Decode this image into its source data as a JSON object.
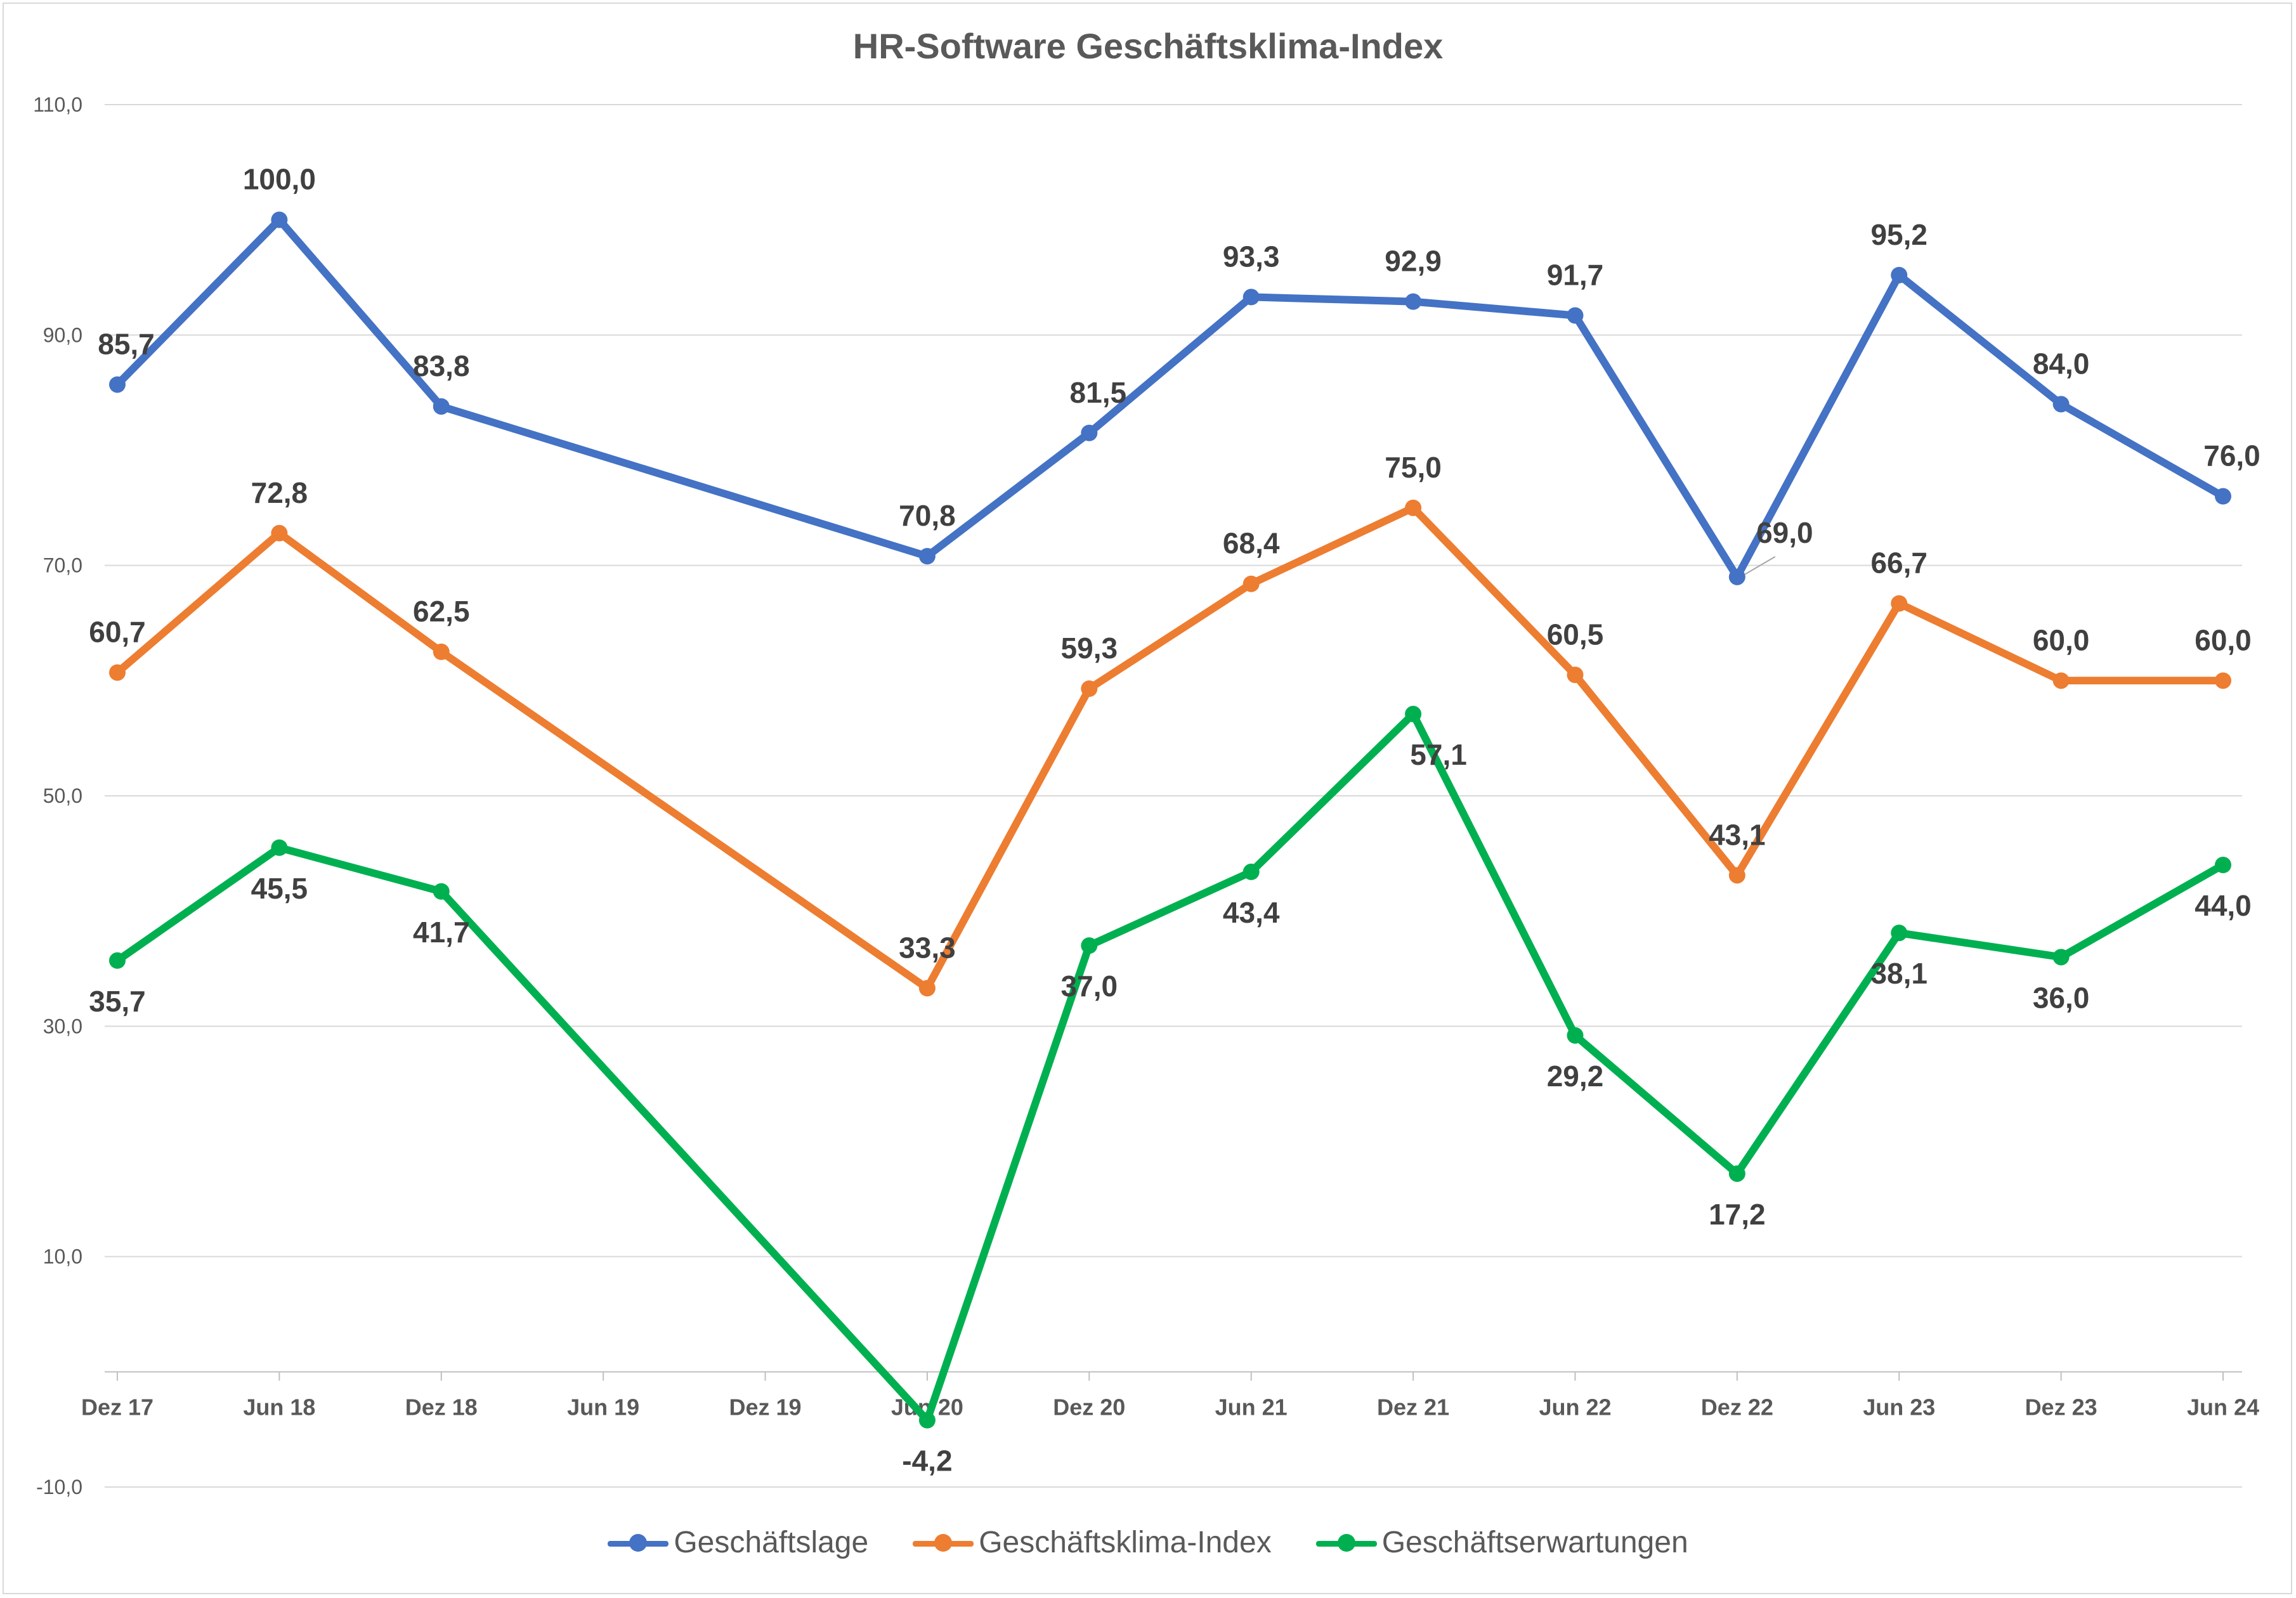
{
  "chart_data": {
    "type": "line",
    "title": "HR-Software Geschäftsklima-Index",
    "xlabel": "",
    "ylabel": "",
    "ylim": [
      -10,
      110
    ],
    "y_ticks": [
      -10,
      10,
      30,
      50,
      70,
      90,
      110
    ],
    "y_tick_labels": [
      "-10,0",
      "10,0",
      "30,0",
      "50,0",
      "70,0",
      "90,0",
      "110,0"
    ],
    "grid": true,
    "legend_position": "bottom",
    "categories": [
      "Dez 17",
      "Jun 18",
      "Dez 18",
      "Jun 19",
      "Dez 19",
      "Jun 20",
      "Dez 20",
      "Jun 21",
      "Dez 21",
      "Jun 22",
      "Dez 22",
      "Jun 23",
      "Dez 23",
      "Jun 24"
    ],
    "series": [
      {
        "name": "Geschäftslage",
        "color": "#4472C4",
        "values": [
          85.7,
          100.0,
          83.8,
          null,
          null,
          70.8,
          81.5,
          93.3,
          92.9,
          91.7,
          69.0,
          95.2,
          84.0,
          76.0
        ],
        "labels": [
          "85,7",
          "100,0",
          "83,8",
          "",
          "",
          "70,8",
          "81,5",
          "93,3",
          "92,9",
          "91,7",
          "69,0",
          "95,2",
          "84,0",
          "76,0"
        ]
      },
      {
        "name": "Geschäftsklima-Index",
        "color": "#ED7D31",
        "values": [
          60.7,
          72.8,
          62.5,
          null,
          null,
          33.3,
          59.3,
          68.4,
          75.0,
          60.5,
          43.1,
          66.7,
          60.0,
          60.0
        ],
        "labels": [
          "60,7",
          "72,8",
          "62,5",
          "",
          "",
          "33,3",
          "59,3",
          "68,4",
          "75,0",
          "60,5",
          "43,1",
          "66,7",
          "60,0",
          "60,0"
        ]
      },
      {
        "name": "Geschäftserwartungen",
        "color": "#00B050",
        "values": [
          35.7,
          45.5,
          41.7,
          null,
          null,
          -4.2,
          37.0,
          43.4,
          57.1,
          29.2,
          17.2,
          38.1,
          36.0,
          44.0
        ],
        "labels": [
          "35,7",
          "45,5",
          "41,7",
          "",
          "",
          "-4,2",
          "37,0",
          "43,4",
          "57,1",
          "29,2",
          "17,2",
          "38,1",
          "36,0",
          "44,0"
        ]
      }
    ]
  }
}
